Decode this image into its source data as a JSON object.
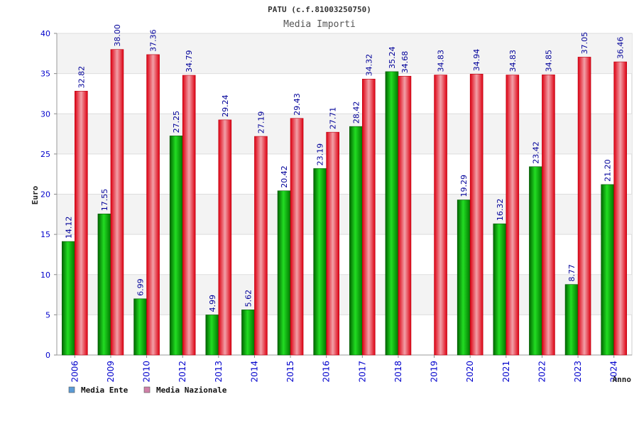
{
  "chart_data": {
    "type": "bar",
    "title": "PATU (c.f.81003250750)",
    "subtitle": "Media Importi",
    "xlabel": "Anno",
    "ylabel": "Euro",
    "ylim": [
      0,
      40
    ],
    "yticks": [
      0,
      5,
      10,
      15,
      20,
      25,
      30,
      35,
      40
    ],
    "grid": true,
    "legend_position": "bottom-left",
    "categories": [
      "2006",
      "2009",
      "2010",
      "2012",
      "2013",
      "2014",
      "2015",
      "2016",
      "2017",
      "2018",
      "2019",
      "2020",
      "2021",
      "2022",
      "2023",
      "2024"
    ],
    "series": [
      {
        "name": "Media Ente",
        "color": "#00aa00",
        "legend_color": "#5b9bd5",
        "values": [
          14.12,
          17.55,
          6.99,
          27.25,
          4.99,
          5.62,
          20.42,
          23.19,
          28.42,
          35.24,
          null,
          19.29,
          16.32,
          23.42,
          8.77,
          21.2
        ],
        "labels": [
          "14.12",
          "17.55",
          "6.99",
          "27.25",
          "4.99",
          "5.62",
          "20.42",
          "23.19",
          "28.42",
          "35.24",
          "",
          "19.29",
          "16.32",
          "23.42",
          "8.77",
          "21.20"
        ]
      },
      {
        "name": "Media Nazionale",
        "color": "#ee1122",
        "legend_color": "#d080a8",
        "values": [
          32.82,
          38.0,
          37.36,
          34.79,
          29.24,
          27.19,
          29.43,
          27.71,
          34.32,
          34.68,
          34.83,
          34.94,
          34.83,
          34.85,
          37.05,
          36.46
        ],
        "labels": [
          "32.82",
          "38.00",
          "37.36",
          "34.79",
          "29.24",
          "27.19",
          "29.43",
          "27.71",
          "34.32",
          "34.68",
          "34.83",
          "34.94",
          "34.83",
          "34.85",
          "37.05",
          "36.46"
        ]
      }
    ]
  }
}
